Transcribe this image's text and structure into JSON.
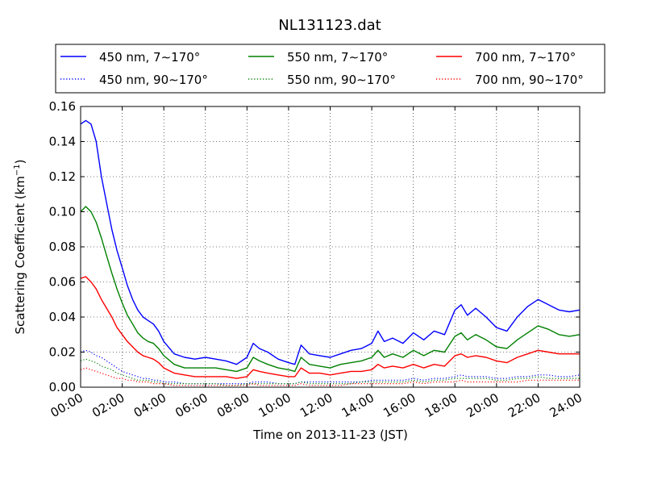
{
  "chart_data": {
    "type": "line",
    "title": "NL131123.dat",
    "xlabel": "Time on 2013-11-23 (JST)",
    "ylabel": "Scattering Coefficient (km",
    "ylabel_sup": "−1",
    "ylabel_end": ")",
    "xlim": [
      0,
      24
    ],
    "ylim": [
      0,
      0.16
    ],
    "grid": true,
    "legend_position": "top",
    "x_ticks": [
      0,
      2,
      4,
      6,
      8,
      10,
      12,
      14,
      16,
      18,
      20,
      22,
      24
    ],
    "x_tick_labels": [
      "00:00",
      "02:00",
      "04:00",
      "06:00",
      "08:00",
      "10:00",
      "12:00",
      "14:00",
      "16:00",
      "18:00",
      "20:00",
      "22:00",
      "24:00"
    ],
    "y_ticks": [
      0,
      0.02,
      0.04,
      0.06,
      0.08,
      0.1,
      0.12,
      0.14,
      0.16
    ],
    "y_tick_labels": [
      "0.00",
      "0.02",
      "0.04",
      "0.06",
      "0.08",
      "0.10",
      "0.12",
      "0.14",
      "0.16"
    ],
    "x": [
      0,
      0.25,
      0.5,
      0.75,
      1,
      1.25,
      1.5,
      1.75,
      2,
      2.25,
      2.5,
      2.75,
      3,
      3.25,
      3.5,
      3.75,
      4,
      4.5,
      5,
      5.5,
      6,
      6.5,
      7,
      7.5,
      8,
      8.3,
      8.6,
      9,
      9.5,
      10,
      10.3,
      10.6,
      11,
      11.5,
      12,
      12.5,
      13,
      13.5,
      14,
      14.3,
      14.6,
      15,
      15.5,
      16,
      16.5,
      17,
      17.5,
      18,
      18.3,
      18.6,
      19,
      19.5,
      20,
      20.5,
      21,
      21.5,
      22,
      22.5,
      23,
      23.5,
      24
    ],
    "series": [
      {
        "name": "450 nm, 7∼170°",
        "color": "#0000ff",
        "style": "solid",
        "values": [
          0.15,
          0.152,
          0.15,
          0.14,
          0.12,
          0.105,
          0.09,
          0.078,
          0.068,
          0.058,
          0.05,
          0.044,
          0.04,
          0.038,
          0.036,
          0.032,
          0.026,
          0.019,
          0.017,
          0.016,
          0.017,
          0.016,
          0.015,
          0.013,
          0.017,
          0.025,
          0.022,
          0.02,
          0.016,
          0.014,
          0.013,
          0.024,
          0.019,
          0.018,
          0.017,
          0.019,
          0.021,
          0.022,
          0.025,
          0.032,
          0.026,
          0.028,
          0.025,
          0.031,
          0.027,
          0.032,
          0.03,
          0.044,
          0.047,
          0.041,
          0.045,
          0.04,
          0.034,
          0.032,
          0.04,
          0.046,
          0.05,
          0.047,
          0.044,
          0.043,
          0.044
        ]
      },
      {
        "name": "550 nm, 7∼170°",
        "color": "#008000",
        "style": "solid",
        "values": [
          0.1,
          0.103,
          0.1,
          0.094,
          0.085,
          0.075,
          0.065,
          0.056,
          0.048,
          0.041,
          0.036,
          0.031,
          0.028,
          0.026,
          0.025,
          0.022,
          0.018,
          0.013,
          0.011,
          0.011,
          0.011,
          0.011,
          0.01,
          0.009,
          0.011,
          0.017,
          0.015,
          0.013,
          0.011,
          0.01,
          0.009,
          0.017,
          0.013,
          0.012,
          0.011,
          0.013,
          0.014,
          0.015,
          0.017,
          0.021,
          0.017,
          0.019,
          0.017,
          0.021,
          0.018,
          0.021,
          0.02,
          0.029,
          0.031,
          0.027,
          0.03,
          0.027,
          0.023,
          0.022,
          0.027,
          0.031,
          0.035,
          0.033,
          0.03,
          0.029,
          0.03
        ]
      },
      {
        "name": "700 nm, 7∼170°",
        "color": "#ff0000",
        "style": "solid",
        "values": [
          0.062,
          0.063,
          0.06,
          0.056,
          0.05,
          0.045,
          0.04,
          0.034,
          0.03,
          0.026,
          0.023,
          0.02,
          0.018,
          0.017,
          0.016,
          0.014,
          0.011,
          0.008,
          0.007,
          0.006,
          0.006,
          0.006,
          0.006,
          0.005,
          0.006,
          0.01,
          0.009,
          0.008,
          0.007,
          0.006,
          0.006,
          0.011,
          0.008,
          0.008,
          0.007,
          0.008,
          0.009,
          0.009,
          0.01,
          0.013,
          0.011,
          0.012,
          0.011,
          0.013,
          0.011,
          0.013,
          0.012,
          0.018,
          0.019,
          0.017,
          0.018,
          0.017,
          0.015,
          0.014,
          0.017,
          0.019,
          0.021,
          0.02,
          0.019,
          0.019,
          0.019
        ]
      },
      {
        "name": "450 nm, 90∼170°",
        "color": "#0000ff",
        "style": "dotted",
        "values": [
          0.02,
          0.021,
          0.02,
          0.018,
          0.017,
          0.015,
          0.013,
          0.011,
          0.009,
          0.008,
          0.007,
          0.006,
          0.005,
          0.005,
          0.004,
          0.004,
          0.003,
          0.003,
          0.002,
          0.002,
          0.002,
          0.002,
          0.002,
          0.002,
          0.002,
          0.003,
          0.003,
          0.003,
          0.002,
          0.002,
          0.002,
          0.003,
          0.003,
          0.003,
          0.003,
          0.003,
          0.003,
          0.003,
          0.004,
          0.004,
          0.004,
          0.004,
          0.004,
          0.005,
          0.004,
          0.005,
          0.005,
          0.006,
          0.007,
          0.006,
          0.006,
          0.006,
          0.005,
          0.005,
          0.006,
          0.006,
          0.007,
          0.007,
          0.006,
          0.006,
          0.007
        ]
      },
      {
        "name": "550 nm, 90∼170°",
        "color": "#008000",
        "style": "dotted",
        "values": [
          0.015,
          0.016,
          0.015,
          0.014,
          0.012,
          0.011,
          0.01,
          0.008,
          0.007,
          0.006,
          0.005,
          0.004,
          0.004,
          0.004,
          0.003,
          0.003,
          0.002,
          0.002,
          0.002,
          0.002,
          0.002,
          0.002,
          0.001,
          0.001,
          0.002,
          0.002,
          0.002,
          0.002,
          0.002,
          0.002,
          0.002,
          0.003,
          0.002,
          0.002,
          0.002,
          0.002,
          0.002,
          0.003,
          0.003,
          0.003,
          0.003,
          0.003,
          0.003,
          0.004,
          0.003,
          0.004,
          0.004,
          0.005,
          0.005,
          0.005,
          0.005,
          0.005,
          0.004,
          0.004,
          0.005,
          0.005,
          0.006,
          0.005,
          0.005,
          0.005,
          0.005
        ]
      },
      {
        "name": "700 nm, 90∼170°",
        "color": "#ff0000",
        "style": "dotted",
        "values": [
          0.01,
          0.011,
          0.01,
          0.009,
          0.008,
          0.007,
          0.006,
          0.005,
          0.005,
          0.004,
          0.004,
          0.003,
          0.003,
          0.003,
          0.002,
          0.002,
          0.002,
          0.001,
          0.001,
          0.001,
          0.001,
          0.001,
          0.001,
          0.001,
          0.001,
          0.002,
          0.001,
          0.001,
          0.001,
          0.001,
          0.001,
          0.002,
          0.001,
          0.001,
          0.001,
          0.001,
          0.002,
          0.002,
          0.002,
          0.002,
          0.002,
          0.002,
          0.002,
          0.003,
          0.002,
          0.003,
          0.003,
          0.003,
          0.004,
          0.003,
          0.003,
          0.003,
          0.003,
          0.003,
          0.003,
          0.004,
          0.004,
          0.004,
          0.004,
          0.004,
          0.004
        ]
      }
    ]
  }
}
